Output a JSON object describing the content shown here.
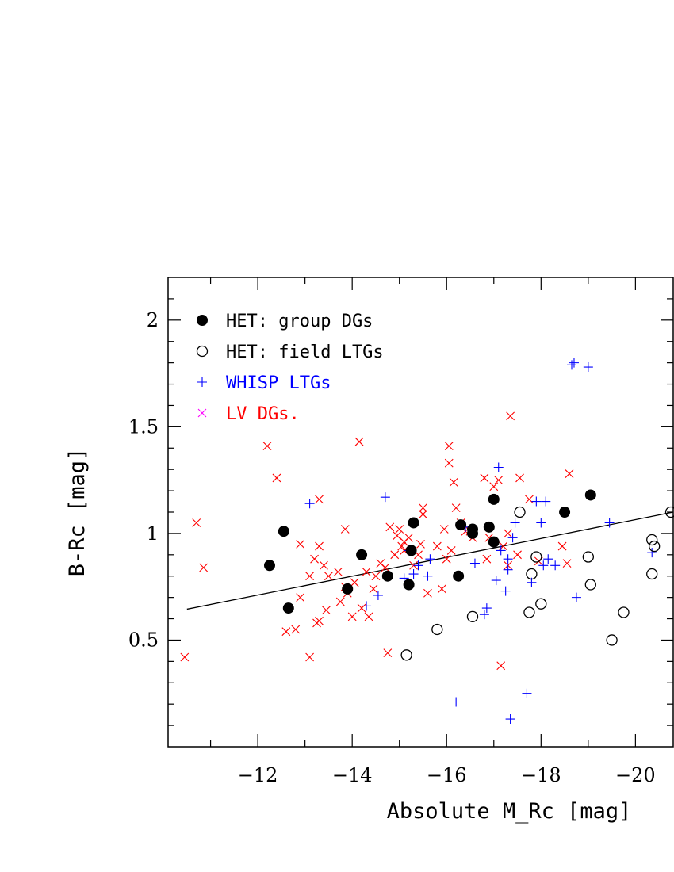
{
  "chart_data": {
    "type": "scatter",
    "xlabel": "Absolute M_Rc [mag]",
    "ylabel": "B-Rc [mag]",
    "xlim": [
      -10.1,
      -20.8
    ],
    "ylim": [
      0.0,
      2.2
    ],
    "x_axis_reversed": true,
    "x_ticks": [
      -12,
      -14,
      -16,
      -18,
      -20
    ],
    "x_tick_labels": [
      "−12",
      "−14",
      "−16",
      "−18",
      "−20"
    ],
    "y_ticks": [
      0.5,
      1,
      1.5,
      2
    ],
    "y_tick_labels": [
      "0.5",
      "1",
      "1.5",
      "2"
    ],
    "legend_position": "top-left",
    "colors": {
      "het_group": "#000000",
      "het_field": "#000000",
      "whisp": "#0000ff",
      "lv": "#ff0000",
      "lv_legend_marker": "#ff00ff",
      "fit_line": "#000000"
    },
    "series": [
      {
        "name": "HET: group DGs",
        "marker": "filled-circle",
        "points": [
          [
            -12.25,
            0.85
          ],
          [
            -12.55,
            1.01
          ],
          [
            -12.65,
            0.65
          ],
          [
            -13.9,
            0.74
          ],
          [
            -14.2,
            0.9
          ],
          [
            -14.75,
            0.8
          ],
          [
            -15.2,
            0.76
          ],
          [
            -15.25,
            0.92
          ],
          [
            -15.3,
            1.05
          ],
          [
            -16.25,
            0.8
          ],
          [
            -16.3,
            1.04
          ],
          [
            -16.55,
            1.02
          ],
          [
            -16.55,
            1.0
          ],
          [
            -16.9,
            1.03
          ],
          [
            -17.0,
            1.16
          ],
          [
            -17.0,
            0.96
          ],
          [
            -18.5,
            1.1
          ],
          [
            -19.05,
            1.18
          ]
        ]
      },
      {
        "name": "HET: field LTGs",
        "marker": "open-circle",
        "points": [
          [
            -15.15,
            0.43
          ],
          [
            -15.8,
            0.55
          ],
          [
            -16.55,
            0.61
          ],
          [
            -17.55,
            1.1
          ],
          [
            -17.75,
            0.63
          ],
          [
            -17.8,
            0.81
          ],
          [
            -17.9,
            0.89
          ],
          [
            -18.0,
            0.67
          ],
          [
            -19.0,
            0.89
          ],
          [
            -19.05,
            0.76
          ],
          [
            -19.5,
            0.5
          ],
          [
            -19.75,
            0.63
          ],
          [
            -20.35,
            0.97
          ],
          [
            -20.4,
            0.94
          ],
          [
            -20.35,
            0.81
          ],
          [
            -20.75,
            1.1
          ]
        ]
      },
      {
        "name": "WHISP LTGs",
        "marker": "plus",
        "points": [
          [
            -13.1,
            1.14
          ],
          [
            -14.3,
            0.66
          ],
          [
            -14.55,
            0.71
          ],
          [
            -14.7,
            1.17
          ],
          [
            -15.1,
            0.79
          ],
          [
            -15.2,
            0.92
          ],
          [
            -15.3,
            0.81
          ],
          [
            -15.4,
            0.85
          ],
          [
            -15.6,
            0.8
          ],
          [
            -15.65,
            0.88
          ],
          [
            -16.2,
            0.21
          ],
          [
            -16.4,
            1.03
          ],
          [
            -16.6,
            0.86
          ],
          [
            -16.8,
            0.62
          ],
          [
            -16.85,
            0.65
          ],
          [
            -17.05,
            0.78
          ],
          [
            -17.1,
            1.31
          ],
          [
            -17.15,
            0.92
          ],
          [
            -17.25,
            0.73
          ],
          [
            -17.3,
            0.88
          ],
          [
            -17.3,
            0.83
          ],
          [
            -17.35,
            0.13
          ],
          [
            -17.4,
            0.98
          ],
          [
            -17.45,
            1.05
          ],
          [
            -17.7,
            0.25
          ],
          [
            -17.8,
            0.77
          ],
          [
            -17.9,
            1.15
          ],
          [
            -18.0,
            1.05
          ],
          [
            -18.05,
            0.85
          ],
          [
            -18.1,
            1.15
          ],
          [
            -18.15,
            0.88
          ],
          [
            -18.3,
            0.85
          ],
          [
            -18.65,
            1.79
          ],
          [
            -18.7,
            1.8
          ],
          [
            -18.75,
            0.7
          ],
          [
            -19.0,
            1.78
          ],
          [
            -19.45,
            1.05
          ],
          [
            -20.35,
            0.91
          ]
        ]
      },
      {
        "name": "LV DGs.",
        "marker": "cross",
        "points": [
          [
            -10.45,
            0.42
          ],
          [
            -10.7,
            1.05
          ],
          [
            -10.85,
            0.84
          ],
          [
            -12.2,
            1.41
          ],
          [
            -12.4,
            1.26
          ],
          [
            -12.6,
            0.54
          ],
          [
            -12.8,
            0.55
          ],
          [
            -12.9,
            0.95
          ],
          [
            -12.9,
            0.7
          ],
          [
            -13.1,
            0.42
          ],
          [
            -13.1,
            0.8
          ],
          [
            -13.2,
            0.88
          ],
          [
            -13.25,
            0.58
          ],
          [
            -13.3,
            0.94
          ],
          [
            -13.3,
            0.59
          ],
          [
            -13.3,
            1.16
          ],
          [
            -13.4,
            0.85
          ],
          [
            -13.45,
            0.64
          ],
          [
            -13.5,
            0.8
          ],
          [
            -13.7,
            0.82
          ],
          [
            -13.75,
            0.68
          ],
          [
            -13.85,
            0.75
          ],
          [
            -13.85,
            1.02
          ],
          [
            -13.9,
            0.72
          ],
          [
            -14.0,
            0.61
          ],
          [
            -14.05,
            0.77
          ],
          [
            -14.15,
            1.43
          ],
          [
            -14.2,
            0.65
          ],
          [
            -14.3,
            0.82
          ],
          [
            -14.35,
            0.61
          ],
          [
            -14.45,
            0.74
          ],
          [
            -14.5,
            0.8
          ],
          [
            -14.6,
            0.86
          ],
          [
            -14.7,
            0.84
          ],
          [
            -14.75,
            0.44
          ],
          [
            -14.8,
            1.03
          ],
          [
            -14.9,
            0.9
          ],
          [
            -14.95,
            0.99
          ],
          [
            -15.0,
            1.02
          ],
          [
            -15.05,
            0.94
          ],
          [
            -15.1,
            0.92
          ],
          [
            -15.1,
            0.96
          ],
          [
            -15.2,
            0.98
          ],
          [
            -15.3,
            0.85
          ],
          [
            -15.4,
            0.9
          ],
          [
            -15.45,
            0.95
          ],
          [
            -15.5,
            1.12
          ],
          [
            -15.5,
            1.09
          ],
          [
            -15.6,
            0.72
          ],
          [
            -15.8,
            0.94
          ],
          [
            -15.9,
            0.74
          ],
          [
            -15.95,
            1.02
          ],
          [
            -16.0,
            0.88
          ],
          [
            -16.05,
            1.41
          ],
          [
            -16.05,
            1.33
          ],
          [
            -16.1,
            0.92
          ],
          [
            -16.15,
            1.24
          ],
          [
            -16.2,
            1.12
          ],
          [
            -16.3,
            1.05
          ],
          [
            -16.4,
            1.01
          ],
          [
            -16.5,
            1.01
          ],
          [
            -16.55,
            0.98
          ],
          [
            -16.8,
            1.26
          ],
          [
            -16.85,
            0.88
          ],
          [
            -16.9,
            0.98
          ],
          [
            -17.0,
            1.22
          ],
          [
            -17.1,
            1.25
          ],
          [
            -17.15,
            0.38
          ],
          [
            -17.2,
            0.94
          ],
          [
            -17.3,
            1.0
          ],
          [
            -17.3,
            0.85
          ],
          [
            -17.35,
            1.55
          ],
          [
            -17.5,
            0.9
          ],
          [
            -17.55,
            1.26
          ],
          [
            -17.75,
            1.16
          ],
          [
            -17.95,
            0.87
          ],
          [
            -18.45,
            0.94
          ],
          [
            -18.55,
            0.86
          ],
          [
            -18.6,
            1.28
          ]
        ]
      }
    ],
    "fit_line": {
      "x": [
        -10.5,
        -20.8
      ],
      "y": [
        0.645,
        1.1
      ]
    }
  }
}
